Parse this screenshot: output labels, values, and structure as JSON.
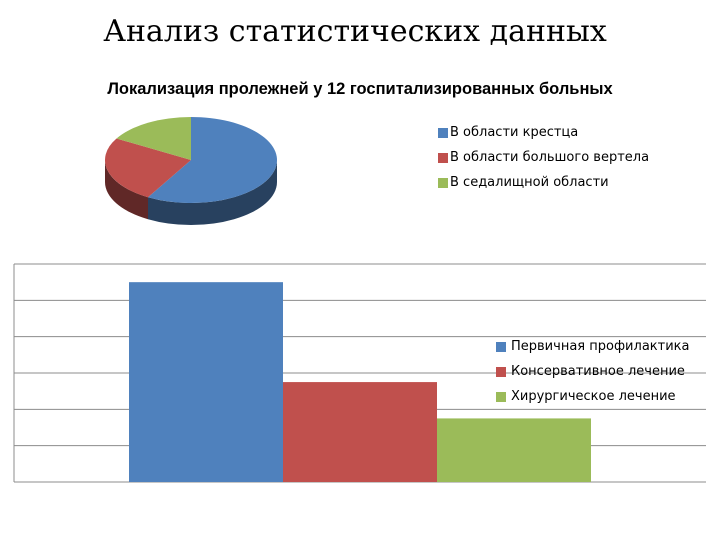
{
  "slide": {
    "title": "Анализ статистических данных"
  },
  "colors": {
    "blue": "#4f81bd",
    "red": "#c0504d",
    "green": "#9bbb59",
    "grid": "#8c8c8c"
  },
  "chart_data": [
    {
      "type": "pie",
      "title": "Локализация пролежней у 12 госпитализированных больных",
      "categories": [
        "В области крестца",
        "В области большого вертела",
        "В седалищной области"
      ],
      "values": [
        7,
        3,
        2
      ],
      "legend_position": "right"
    },
    {
      "type": "bar",
      "title": "",
      "categories": [
        ""
      ],
      "series": [
        {
          "name": "Первичная профилактика",
          "values": [
            5.5
          ]
        },
        {
          "name": "Консервативное лечение",
          "values": [
            2.75
          ]
        },
        {
          "name": "Хирургическое лечение",
          "values": [
            1.75
          ]
        }
      ],
      "ylim": [
        0,
        6
      ],
      "grid": true,
      "legend_position": "right"
    }
  ]
}
